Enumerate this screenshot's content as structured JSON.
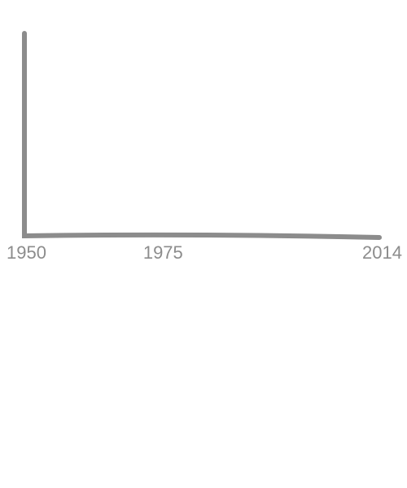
{
  "chart_data": {
    "type": "line",
    "title": "",
    "xlabel": "",
    "ylabel": "",
    "xlim": [
      1950,
      2014
    ],
    "x_ticks": [
      "1950",
      "1975",
      "2014"
    ],
    "y_ticks": [],
    "series": [],
    "grid": false,
    "legend": "none"
  },
  "colors": {
    "axis": "#8c8c8c",
    "tick_label": "#8c8c8c",
    "background": "#ffffff"
  }
}
